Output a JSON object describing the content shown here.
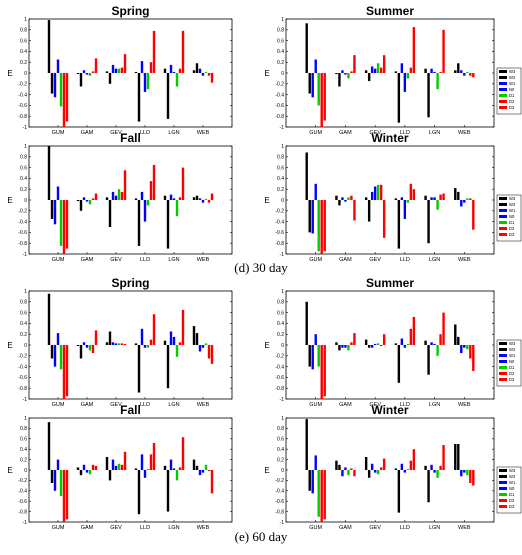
{
  "captions": [
    "(d) 30 day",
    "(e) 60 day"
  ],
  "legend_labels": [
    "W3",
    "W2",
    "W1",
    "N0",
    "D1",
    "D2",
    "D3"
  ],
  "series_colors": [
    "#000000",
    "#000000",
    "#0000ff",
    "#0000ff",
    "#00cc00",
    "#ff0000",
    "#ff0000"
  ],
  "chart_data": [
    {
      "type": "bar",
      "group": "(d) 30 day",
      "title": "Spring",
      "ylabel": "E",
      "ylim": [
        -1,
        1
      ],
      "yticks": [
        1,
        0.8,
        0.6,
        0.4,
        0.2,
        0,
        -0.2,
        -0.4,
        -0.6,
        -0.8,
        -1
      ],
      "categories": [
        "GUM",
        "GAM",
        "GEV",
        "LLD",
        "LGN",
        "WEB"
      ],
      "series": [
        {
          "name": "W3",
          "values": [
            0.98,
            -0.02,
            0.03,
            0.02,
            0.08,
            0.05
          ]
        },
        {
          "name": "W2",
          "values": [
            -0.38,
            -0.25,
            -0.2,
            -0.9,
            -0.85,
            0.18
          ]
        },
        {
          "name": "W1",
          "values": [
            -0.45,
            0.05,
            0.15,
            0.22,
            0.15,
            0.08
          ]
        },
        {
          "name": "N0",
          "values": [
            0.25,
            -0.03,
            0.08,
            -0.35,
            0.02,
            -0.05
          ]
        },
        {
          "name": "D1",
          "values": [
            -0.62,
            -0.05,
            0.08,
            -0.3,
            -0.25,
            0.02
          ]
        },
        {
          "name": "D2",
          "values": [
            -1.0,
            0.03,
            0.1,
            0.2,
            0.08,
            -0.05
          ]
        },
        {
          "name": "D3",
          "values": [
            -0.9,
            0.27,
            0.35,
            0.78,
            0.78,
            -0.18
          ]
        }
      ]
    },
    {
      "type": "bar",
      "group": "(d) 30 day",
      "title": "Summer",
      "ylabel": "E",
      "ylim": [
        -1,
        1
      ],
      "yticks": [
        1,
        0.8,
        0.6,
        0.4,
        0.2,
        0,
        -0.2,
        -0.4,
        -0.6,
        -0.8,
        -1
      ],
      "categories": [
        "GUM",
        "GAM",
        "GEV",
        "LLD",
        "LGN",
        "WEB"
      ],
      "series": [
        {
          "name": "W3",
          "values": [
            0.92,
            -0.02,
            0.05,
            0.03,
            0.08,
            0.05
          ]
        },
        {
          "name": "W2",
          "values": [
            -0.38,
            -0.25,
            -0.15,
            -0.92,
            -0.82,
            0.18
          ]
        },
        {
          "name": "W1",
          "values": [
            -0.45,
            0.05,
            0.12,
            0.18,
            0.08,
            0.05
          ]
        },
        {
          "name": "N0",
          "values": [
            0.25,
            -0.03,
            0.08,
            -0.35,
            0.02,
            -0.05
          ]
        },
        {
          "name": "D1",
          "values": [
            -0.6,
            -0.1,
            0.18,
            -0.1,
            -0.3,
            0.02
          ]
        },
        {
          "name": "D2",
          "values": [
            -1.0,
            0.03,
            0.1,
            0.1,
            0.02,
            -0.05
          ]
        },
        {
          "name": "D3",
          "values": [
            -0.88,
            0.33,
            0.33,
            0.85,
            0.8,
            -0.08
          ]
        }
      ]
    },
    {
      "type": "bar",
      "group": "(d) 30 day",
      "title": "Fall",
      "ylabel": "E",
      "ylim": [
        -1,
        1
      ],
      "yticks": [
        1,
        0.8,
        0.6,
        0.4,
        0.2,
        0,
        -0.2,
        -0.4,
        -0.6,
        -0.8,
        -1
      ],
      "categories": [
        "GUM",
        "GAM",
        "GEV",
        "LLD",
        "LGN",
        "WEB"
      ],
      "series": [
        {
          "name": "W3",
          "values": [
            1.0,
            -0.02,
            0.05,
            0.03,
            0.08,
            0.05
          ]
        },
        {
          "name": "W2",
          "values": [
            -0.35,
            -0.2,
            -0.5,
            -0.85,
            -0.9,
            0.08
          ]
        },
        {
          "name": "W1",
          "values": [
            -0.45,
            0.05,
            0.15,
            0.15,
            0.1,
            0.03
          ]
        },
        {
          "name": "N0",
          "values": [
            0.25,
            -0.03,
            0.08,
            -0.4,
            0.03,
            -0.05
          ]
        },
        {
          "name": "D1",
          "values": [
            -0.85,
            -0.08,
            0.2,
            -0.1,
            -0.3,
            0.02
          ]
        },
        {
          "name": "D2",
          "values": [
            -1.0,
            0.03,
            0.15,
            0.35,
            0.05,
            -0.05
          ]
        },
        {
          "name": "D3",
          "values": [
            -0.9,
            0.12,
            0.55,
            0.65,
            0.6,
            0.12
          ]
        }
      ]
    },
    {
      "type": "bar",
      "group": "(d) 30 day",
      "title": "Winter",
      "ylabel": "E",
      "ylim": [
        -1,
        1
      ],
      "yticks": [
        1,
        0.8,
        0.6,
        0.4,
        0.2,
        0,
        -0.2,
        -0.4,
        -0.6,
        -0.8,
        -1
      ],
      "categories": [
        "GUM",
        "GAM",
        "GEV",
        "LLD",
        "LGN",
        "WEB"
      ],
      "series": [
        {
          "name": "W3",
          "values": [
            0.88,
            0.08,
            0.05,
            0.03,
            0.08,
            0.22
          ]
        },
        {
          "name": "W2",
          "values": [
            -0.6,
            -0.1,
            -0.4,
            -0.9,
            -0.8,
            0.15
          ]
        },
        {
          "name": "W1",
          "values": [
            -0.62,
            0.05,
            0.15,
            0.05,
            0.05,
            -0.12
          ]
        },
        {
          "name": "N0",
          "values": [
            0.3,
            -0.03,
            0.25,
            -0.35,
            0.05,
            -0.05
          ]
        },
        {
          "name": "D1",
          "values": [
            -0.95,
            0.05,
            0.28,
            -0.05,
            -0.18,
            0.03
          ]
        },
        {
          "name": "D2",
          "values": [
            -1.0,
            0.08,
            0.28,
            0.3,
            0.1,
            0.03
          ]
        },
        {
          "name": "D3",
          "values": [
            -0.95,
            -0.38,
            -0.7,
            0.2,
            0.12,
            -0.55
          ]
        }
      ]
    },
    {
      "type": "bar",
      "group": "(e) 60 day",
      "title": "Spring",
      "ylabel": "E",
      "ylim": [
        -1,
        1
      ],
      "yticks": [
        1,
        0.8,
        0.6,
        0.4,
        0.2,
        0,
        -0.2,
        -0.4,
        -0.6,
        -0.8,
        -1
      ],
      "categories": [
        "GUM",
        "GAM",
        "GEV",
        "LLD",
        "LGN",
        "WEB"
      ],
      "series": [
        {
          "name": "W3",
          "values": [
            0.95,
            -0.02,
            0.05,
            0.03,
            0.08,
            0.35
          ]
        },
        {
          "name": "W2",
          "values": [
            -0.25,
            -0.25,
            0.25,
            -0.88,
            -0.8,
            0.22
          ]
        },
        {
          "name": "W1",
          "values": [
            -0.4,
            0.05,
            0.05,
            0.3,
            0.25,
            -0.12
          ]
        },
        {
          "name": "N0",
          "values": [
            0.22,
            -0.05,
            0.03,
            -0.05,
            0.15,
            -0.05
          ]
        },
        {
          "name": "D1",
          "values": [
            -0.45,
            -0.1,
            0.03,
            -0.05,
            -0.22,
            0.03
          ]
        },
        {
          "name": "D2",
          "values": [
            -1.0,
            -0.15,
            0.03,
            0.1,
            0.05,
            -0.25
          ]
        },
        {
          "name": "D3",
          "values": [
            -0.95,
            0.27,
            0.02,
            0.57,
            0.65,
            -0.35
          ]
        }
      ]
    },
    {
      "type": "bar",
      "group": "(e) 60 day",
      "title": "Summer",
      "ylabel": "E",
      "ylim": [
        -1,
        1
      ],
      "yticks": [
        1,
        0.8,
        0.6,
        0.4,
        0.2,
        0,
        -0.2,
        -0.4,
        -0.6,
        -0.8,
        -1
      ],
      "categories": [
        "GUM",
        "GAM",
        "GEV",
        "LLD",
        "LGN",
        "WEB"
      ],
      "series": [
        {
          "name": "W3",
          "values": [
            0.8,
            0.05,
            0.1,
            0.03,
            0.08,
            0.38
          ]
        },
        {
          "name": "W2",
          "values": [
            -0.4,
            -0.1,
            -0.05,
            -0.7,
            -0.55,
            0.15
          ]
        },
        {
          "name": "W1",
          "values": [
            -0.45,
            -0.05,
            -0.05,
            0.12,
            0.05,
            -0.15
          ]
        },
        {
          "name": "N0",
          "values": [
            0.2,
            -0.05,
            0.02,
            -0.05,
            0.02,
            -0.05
          ]
        },
        {
          "name": "D1",
          "values": [
            -0.4,
            -0.1,
            0.03,
            0.02,
            -0.2,
            -0.08
          ]
        },
        {
          "name": "D2",
          "values": [
            -1.0,
            0.05,
            -0.02,
            0.3,
            0.2,
            -0.25
          ]
        },
        {
          "name": "D3",
          "values": [
            -0.95,
            0.22,
            0.2,
            0.52,
            0.6,
            -0.48
          ]
        }
      ]
    },
    {
      "type": "bar",
      "group": "(e) 60 day",
      "title": "Fall",
      "ylabel": "E",
      "ylim": [
        -1,
        1
      ],
      "yticks": [
        1,
        0.8,
        0.6,
        0.4,
        0.2,
        0,
        -0.2,
        -0.4,
        -0.6,
        -0.8,
        -1
      ],
      "categories": [
        "GUM",
        "GAM",
        "GEV",
        "LLD",
        "LGN",
        "WEB"
      ],
      "series": [
        {
          "name": "W3",
          "values": [
            0.92,
            0.05,
            0.25,
            0.03,
            0.08,
            0.2
          ]
        },
        {
          "name": "W2",
          "values": [
            -0.25,
            -0.1,
            -0.2,
            -0.85,
            -0.8,
            0.08
          ]
        },
        {
          "name": "W1",
          "values": [
            -0.4,
            0.1,
            0.2,
            0.3,
            0.2,
            -0.1
          ]
        },
        {
          "name": "N0",
          "values": [
            0.2,
            -0.05,
            0.08,
            -0.15,
            0.03,
            -0.05
          ]
        },
        {
          "name": "D1",
          "values": [
            -0.5,
            -0.08,
            0.12,
            0.02,
            -0.2,
            0.1
          ]
        },
        {
          "name": "D2",
          "values": [
            -1.0,
            0.1,
            0.1,
            0.3,
            0.05,
            -0.02
          ]
        },
        {
          "name": "D3",
          "values": [
            -0.95,
            0.08,
            0.35,
            0.52,
            0.63,
            -0.45
          ]
        }
      ]
    },
    {
      "type": "bar",
      "group": "(e) 60 day",
      "title": "Winter",
      "ylabel": "E",
      "ylim": [
        -1,
        1
      ],
      "yticks": [
        1,
        0.8,
        0.6,
        0.4,
        0.2,
        0,
        -0.2,
        -0.4,
        -0.6,
        -0.8,
        -1
      ],
      "categories": [
        "GUM",
        "GAM",
        "GEV",
        "LLD",
        "LGN",
        "WEB"
      ],
      "series": [
        {
          "name": "W3",
          "values": [
            0.98,
            0.18,
            0.25,
            0.03,
            0.08,
            0.5
          ]
        },
        {
          "name": "W2",
          "values": [
            -0.4,
            0.1,
            -0.15,
            -0.82,
            -0.62,
            0.5
          ]
        },
        {
          "name": "W1",
          "values": [
            -0.45,
            -0.12,
            0.12,
            0.12,
            0.1,
            -0.12
          ]
        },
        {
          "name": "N0",
          "values": [
            0.28,
            0.05,
            -0.05,
            -0.05,
            -0.05,
            -0.05
          ]
        },
        {
          "name": "D1",
          "values": [
            -0.9,
            -0.1,
            -0.08,
            0.02,
            -0.15,
            -0.1
          ]
        },
        {
          "name": "D2",
          "values": [
            -1.0,
            0.03,
            0.05,
            0.18,
            0.08,
            -0.25
          ]
        },
        {
          "name": "D3",
          "values": [
            -0.95,
            -0.12,
            0.22,
            0.4,
            0.48,
            -0.3
          ]
        }
      ]
    }
  ]
}
